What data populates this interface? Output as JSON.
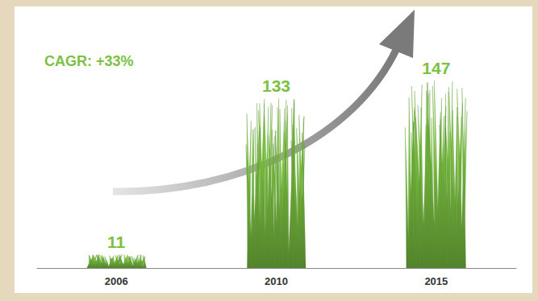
{
  "chart_data": {
    "type": "bar",
    "annotation": "CAGR: +33%",
    "categories": [
      "2006",
      "2010",
      "2015"
    ],
    "values": [
      11,
      133,
      147
    ],
    "color": "#7cc142",
    "data_labels": true,
    "tick_labels": "x"
  }
}
